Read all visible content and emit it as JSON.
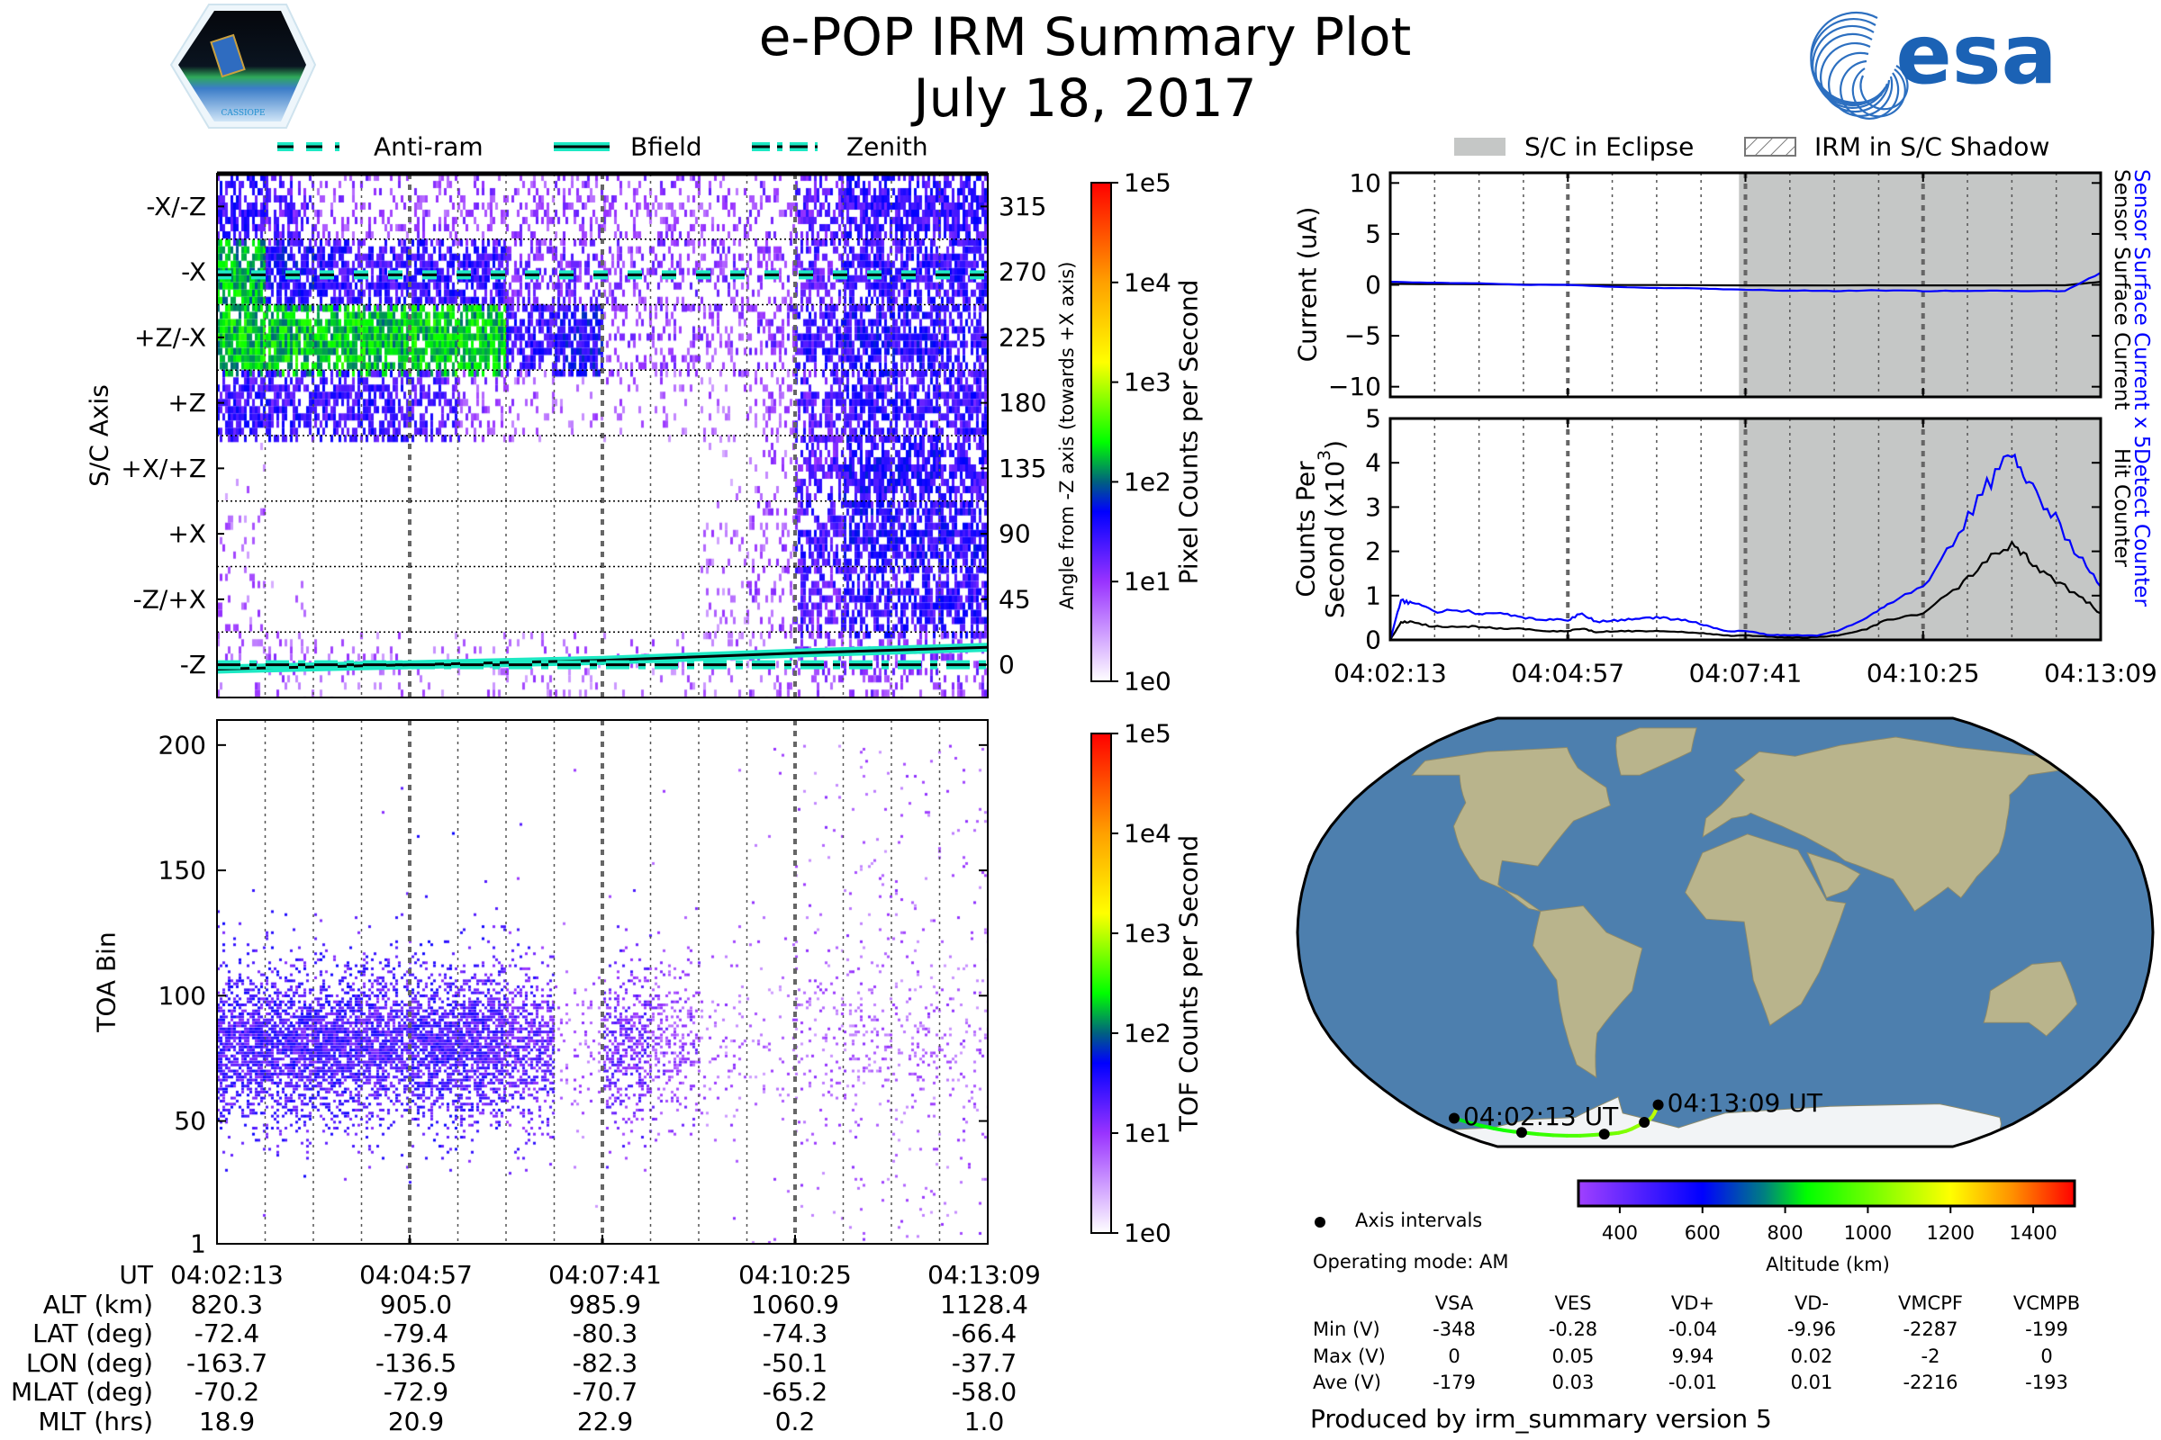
{
  "header": {
    "title": "e-POP IRM Summary Plot",
    "date": "July 18, 2017",
    "left_logo_text": "CASSIOPE",
    "right_logo_text": "esa"
  },
  "colors": {
    "teal": "#1de9c4",
    "blue_series": "#0000ff",
    "black_series": "#000000",
    "eclipse_fill": "#c5c7c6",
    "ocean": "#4d7fae",
    "land": "#b9b48c",
    "ice": "#f2f4f6"
  },
  "time_axis": {
    "start": "04:02:13",
    "duration_sec": 656,
    "ticks": [
      "04:02:13",
      "04:04:57",
      "04:07:41",
      "04:10:25",
      "04:13:09"
    ],
    "tick_sec": [
      0,
      164,
      328,
      492,
      656
    ],
    "minor_step_sec": 41
  },
  "left_legend": [
    {
      "label": "Anti-ram",
      "style": "dashed"
    },
    {
      "label": "Bfield",
      "style": "solid"
    },
    {
      "label": "Zenith",
      "style": "dashdot"
    }
  ],
  "right_legend": [
    {
      "label": "S/C in Eclipse"
    },
    {
      "label": "IRM in S/C Shadow"
    }
  ],
  "chart_data": [
    {
      "id": "pixel-spectrogram",
      "type": "heatmap",
      "ylabel_left": "S/C Axis",
      "ylabel_right": "Angle from -Z axis (towards +X axis)",
      "colorbar_label": "Pixel Counts per Second",
      "colorbar_ticks": [
        "1e5",
        "1e4",
        "1e3",
        "1e2",
        "1e1",
        "1e0"
      ],
      "colorbar_range_log10": [
        0,
        5
      ],
      "ylim": [
        -22.5,
        337.5
      ],
      "axis_labels": [
        "-X/-Z",
        "-X",
        "+Z/-X",
        "+Z",
        "+X/+Z",
        "+X",
        "-Z/+X",
        "-Z"
      ],
      "angle_ticks": [
        "315",
        "270",
        "225",
        "180",
        "135",
        "90",
        "45",
        "0"
      ],
      "angle_values": [
        315,
        270,
        225,
        180,
        135,
        90,
        45,
        0
      ],
      "time_bins": 16,
      "log10_counts": [
        [
          1.2,
          1.0,
          0.5,
          0.5,
          0.5,
          0.5,
          0.5,
          0.5,
          0.5,
          0.5,
          0.5,
          0.6,
          1.0,
          1.2,
          1.2,
          1.2
        ],
        [
          1.6,
          1.4,
          1.2,
          1.2,
          1.2,
          1.2,
          0.8,
          0.8,
          0.6,
          0.6,
          0.6,
          0.6,
          1.0,
          1.2,
          1.2,
          1.2
        ],
        [
          1.7,
          1.7,
          1.7,
          1.7,
          1.7,
          1.7,
          1.2,
          1.4,
          0.5,
          0.5,
          0.5,
          0.7,
          1.2,
          1.3,
          1.3,
          1.2
        ],
        [
          1.2,
          1.2,
          1.2,
          1.2,
          1.0,
          0.5,
          0.3,
          0.2,
          0.2,
          0.2,
          0.2,
          0.4,
          1.0,
          1.2,
          1.2,
          1.2
        ],
        [
          0.1,
          0,
          0,
          0,
          0,
          0,
          0,
          0,
          0,
          0,
          0.1,
          0.3,
          1.0,
          1.3,
          1.3,
          1.2
        ],
        [
          0.2,
          0,
          0,
          0,
          0,
          0,
          0,
          0,
          0,
          0,
          0.2,
          0.4,
          1.1,
          1.3,
          1.3,
          1.3
        ],
        [
          0.2,
          0.1,
          0,
          0,
          0,
          0,
          0,
          0,
          0,
          0,
          0.2,
          0.4,
          1.0,
          1.2,
          1.2,
          1.2
        ],
        [
          0.3,
          0.3,
          0.3,
          0.2,
          0.2,
          0.2,
          0.2,
          0.2,
          0.2,
          0.2,
          0.2,
          0.3,
          0.6,
          0.6,
          0.6,
          0.6
        ]
      ],
      "lines": {
        "anti_ram_deg": {
          "t": [
            0,
            656
          ],
          "v": [
            268,
            268
          ]
        },
        "bfield_deg": {
          "t": [
            0,
            164,
            328,
            492,
            656
          ],
          "v": [
            -3,
            0,
            3,
            8,
            12
          ]
        },
        "zenith_deg": {
          "t": [
            0,
            656
          ],
          "v": [
            0,
            0
          ]
        }
      }
    },
    {
      "id": "tof-spectrogram",
      "type": "heatmap",
      "ylabel": "TOA Bin",
      "ylim": [
        1,
        210
      ],
      "yticks": [
        1,
        50,
        100,
        150,
        200
      ],
      "ytick_labels": [
        "1",
        "50",
        "100",
        "150",
        "200"
      ],
      "colorbar_label": "TOF Counts per Second",
      "colorbar_ticks": [
        "1e5",
        "1e4",
        "1e3",
        "1e2",
        "1e1",
        "1e0"
      ],
      "colorbar_range_log10": [
        0,
        5
      ],
      "time_bins": 16,
      "core_toa_center": 80,
      "core_log10_counts": [
        1.5,
        1.5,
        1.5,
        1.4,
        1.5,
        1.4,
        1.2,
        0.2,
        1.0,
        0.6,
        0.2,
        0.1,
        0.2,
        0.2,
        0.2,
        0.2
      ],
      "scatter_density": [
        0.02,
        0.02,
        0.02,
        0.02,
        0.02,
        0.02,
        0.02,
        0.02,
        0.02,
        0.05,
        0.05,
        0.08,
        0.35,
        0.4,
        0.4,
        0.4
      ]
    },
    {
      "id": "current-plot",
      "type": "line",
      "ylabel": "Current (uA)",
      "ylim": [
        -11,
        11
      ],
      "yticks": [
        10,
        5,
        0,
        -5,
        -10
      ],
      "ytick_labels": [
        "10",
        "5",
        "0",
        "−5",
        "−10"
      ],
      "eclipse_start_sec": 322,
      "series": [
        {
          "name": "Sensor Surface Current x 5",
          "color": "#0000ff",
          "t": [
            0,
            41,
            82,
            123,
            164,
            205,
            246,
            287,
            328,
            369,
            410,
            451,
            492,
            533,
            574,
            623,
            656
          ],
          "v": [
            0.3,
            0.2,
            0.15,
            0.0,
            0.0,
            -0.2,
            -0.3,
            -0.35,
            -0.5,
            -0.55,
            -0.6,
            -0.55,
            -0.6,
            -0.6,
            -0.6,
            -0.6,
            1.2
          ]
        },
        {
          "name": "Sensor Surface Current",
          "color": "#000000",
          "t": [
            0,
            164,
            328,
            492,
            623,
            656
          ],
          "v": [
            0.1,
            0.0,
            -0.05,
            -0.05,
            -0.05,
            0.3
          ]
        }
      ]
    },
    {
      "id": "counts-plot",
      "type": "line",
      "ylabel_line1": "Counts Per",
      "ylabel_line2": "Second (x10",
      "ylabel_sup": "3",
      "ylabel_end": ")",
      "ylim": [
        0,
        5
      ],
      "yticks": [
        5,
        4,
        3,
        2,
        1,
        0
      ],
      "ytick_labels": [
        "5",
        "4",
        "3",
        "2",
        "1",
        "0"
      ],
      "eclipse_start_sec": 322,
      "series": [
        {
          "name": "Detect Counter",
          "color": "#0000ff",
          "t": [
            0,
            10,
            20,
            39,
            66,
            85,
            105,
            125,
            144,
            164,
            177,
            190,
            210,
            230,
            249,
            269,
            289,
            308,
            328,
            348,
            367,
            394,
            413,
            440,
            459,
            492,
            525,
            551,
            574,
            590,
            610,
            636,
            656
          ],
          "v": [
            0,
            0.9,
            0.85,
            0.65,
            0.65,
            0.6,
            0.6,
            0.5,
            0.45,
            0.45,
            0.6,
            0.4,
            0.45,
            0.5,
            0.5,
            0.45,
            0.35,
            0.2,
            0.2,
            0.12,
            0.1,
            0.1,
            0.2,
            0.5,
            0.8,
            1.2,
            2.4,
            3.5,
            4.15,
            3.6,
            2.9,
            1.9,
            1.2
          ]
        },
        {
          "name": "Hit Counter",
          "color": "#000000",
          "t": [
            0,
            10,
            20,
            39,
            66,
            85,
            105,
            125,
            144,
            164,
            177,
            190,
            210,
            230,
            249,
            269,
            289,
            308,
            328,
            348,
            367,
            394,
            413,
            440,
            459,
            492,
            525,
            551,
            574,
            590,
            610,
            636,
            656
          ],
          "v": [
            0,
            0.4,
            0.4,
            0.3,
            0.3,
            0.3,
            0.25,
            0.25,
            0.2,
            0.2,
            0.25,
            0.18,
            0.2,
            0.2,
            0.2,
            0.18,
            0.15,
            0.1,
            0.1,
            0.07,
            0.06,
            0.06,
            0.1,
            0.25,
            0.45,
            0.6,
            1.2,
            1.8,
            2.1,
            1.8,
            1.4,
            1.0,
            0.6
          ]
        }
      ]
    }
  ],
  "orbit_table": {
    "rows": [
      {
        "label": "UT",
        "values": [
          "04:02:13",
          "04:04:57",
          "04:07:41",
          "04:10:25",
          "04:13:09"
        ]
      },
      {
        "label": "ALT (km)",
        "values": [
          "820.3",
          "905.0",
          "985.9",
          "1060.9",
          "1128.4"
        ]
      },
      {
        "label": "LAT (deg)",
        "values": [
          "-72.4",
          "-79.4",
          "-80.3",
          "-74.3",
          "-66.4"
        ]
      },
      {
        "label": "LON (deg)",
        "values": [
          "-163.7",
          "-136.5",
          "-82.3",
          "-50.1",
          "-37.7"
        ]
      },
      {
        "label": "MLAT (deg)",
        "values": [
          "-70.2",
          "-72.9",
          "-70.7",
          "-65.2",
          "-58.0"
        ]
      },
      {
        "label": "MLT (hrs)",
        "values": [
          "18.9",
          "20.9",
          "22.9",
          "0.2",
          "1.0"
        ]
      }
    ]
  },
  "map": {
    "track": {
      "lon": [
        -163.7,
        -136.5,
        -82.3,
        -50.1,
        -37.7
      ],
      "lat": [
        -72.4,
        -79.4,
        -80.3,
        -74.3,
        -66.4
      ],
      "alt_km": [
        820.3,
        905.0,
        985.9,
        1060.9,
        1128.4
      ]
    },
    "start_label": "04:02:13 UT",
    "end_label": "04:13:09 UT",
    "land": [
      [
        [
          -168,
          66
        ],
        [
          -140,
          70
        ],
        [
          -95,
          72
        ],
        [
          -80,
          63
        ],
        [
          -60,
          55
        ],
        [
          -55,
          48
        ],
        [
          -70,
          42
        ],
        [
          -81,
          25
        ],
        [
          -97,
          27
        ],
        [
          -97,
          18
        ],
        [
          -83,
          9
        ],
        [
          -78,
          8
        ],
        [
          -88,
          14
        ],
        [
          -105,
          20
        ],
        [
          -117,
          32
        ],
        [
          -124,
          40
        ],
        [
          -125,
          49
        ],
        [
          -140,
          60
        ],
        [
          -165,
          60
        ]
      ],
      [
        [
          -55,
          60
        ],
        [
          -45,
          60
        ],
        [
          -20,
          70
        ],
        [
          -20,
          82
        ],
        [
          -60,
          82
        ],
        [
          -70,
          77
        ]
      ],
      [
        [
          -78,
          8
        ],
        [
          -60,
          10
        ],
        [
          -50,
          0
        ],
        [
          -35,
          -6
        ],
        [
          -40,
          -22
        ],
        [
          -58,
          -38
        ],
        [
          -65,
          -55
        ],
        [
          -72,
          -50
        ],
        [
          -72,
          -18
        ],
        [
          -81,
          -5
        ]
      ],
      [
        [
          -17,
          15
        ],
        [
          -10,
          30
        ],
        [
          10,
          37
        ],
        [
          32,
          31
        ],
        [
          43,
          12
        ],
        [
          51,
          11
        ],
        [
          40,
          -15
        ],
        [
          33,
          -27
        ],
        [
          20,
          -35
        ],
        [
          12,
          -18
        ],
        [
          8,
          4
        ],
        [
          -8,
          5
        ]
      ],
      [
        [
          -10,
          36
        ],
        [
          -9,
          43
        ],
        [
          -2,
          48
        ],
        [
          5,
          54
        ],
        [
          10,
          58
        ],
        [
          5,
          62
        ],
        [
          20,
          70
        ],
        [
          40,
          68
        ],
        [
          70,
          73
        ],
        [
          110,
          77
        ],
        [
          140,
          72
        ],
        [
          180,
          68
        ],
        [
          180,
          62
        ],
        [
          160,
          60
        ],
        [
          140,
          52
        ],
        [
          130,
          42
        ],
        [
          120,
          30
        ],
        [
          108,
          21
        ],
        [
          100,
          13
        ],
        [
          95,
          17
        ],
        [
          80,
          8
        ],
        [
          72,
          20
        ],
        [
          58,
          25
        ],
        [
          52,
          27
        ],
        [
          48,
          30
        ],
        [
          36,
          36
        ],
        [
          26,
          40
        ],
        [
          12,
          45
        ],
        [
          10,
          44
        ],
        [
          3,
          43
        ]
      ],
      [
        [
          36,
          30
        ],
        [
          43,
          13
        ],
        [
          52,
          16
        ],
        [
          58,
          22
        ],
        [
          50,
          26
        ]
      ],
      [
        [
          114,
          -22
        ],
        [
          130,
          -12
        ],
        [
          142,
          -11
        ],
        [
          153,
          -27
        ],
        [
          146,
          -39
        ],
        [
          135,
          -34
        ],
        [
          115,
          -34
        ]
      ]
    ],
    "ice": [
      [
        -180,
        -78
      ],
      [
        -150,
        -77
      ],
      [
        -120,
        -73
      ],
      [
        -90,
        -72
      ],
      [
        -65,
        -65
      ],
      [
        -58,
        -63
      ],
      [
        -60,
        -70
      ],
      [
        -30,
        -77
      ],
      [
        0,
        -70
      ],
      [
        60,
        -67
      ],
      [
        120,
        -66
      ],
      [
        165,
        -72
      ],
      [
        180,
        -78
      ],
      [
        180,
        -90
      ],
      [
        -180,
        -90
      ]
    ]
  },
  "altitude_colorbar": {
    "label": "Altitude (km)",
    "range": [
      300,
      1500
    ],
    "ticks": [
      400,
      600,
      800,
      1000,
      1200,
      1400
    ],
    "tick_labels": [
      "400",
      "600",
      "800",
      "1000",
      "1200",
      "1400"
    ]
  },
  "info": {
    "axis_intervals_label": "Axis intervals",
    "operating_mode": "Operating mode: AM",
    "footer": "Produced by irm_summary version 5"
  },
  "voltage_table": {
    "columns": [
      "VSA",
      "VES",
      "VD+",
      "VD-",
      "VMCPF",
      "VCMPB"
    ],
    "rows": [
      {
        "label": "Min (V)",
        "values": [
          "-348",
          "-0.28",
          "-0.04",
          "-9.96",
          "-2287",
          "-199"
        ]
      },
      {
        "label": "Max (V)",
        "values": [
          "0",
          "0.05",
          "9.94",
          "0.02",
          "-2",
          "0"
        ]
      },
      {
        "label": "Ave (V)",
        "values": [
          "-179",
          "0.03",
          "-0.01",
          "0.01",
          "-2216",
          "-193"
        ]
      }
    ]
  }
}
